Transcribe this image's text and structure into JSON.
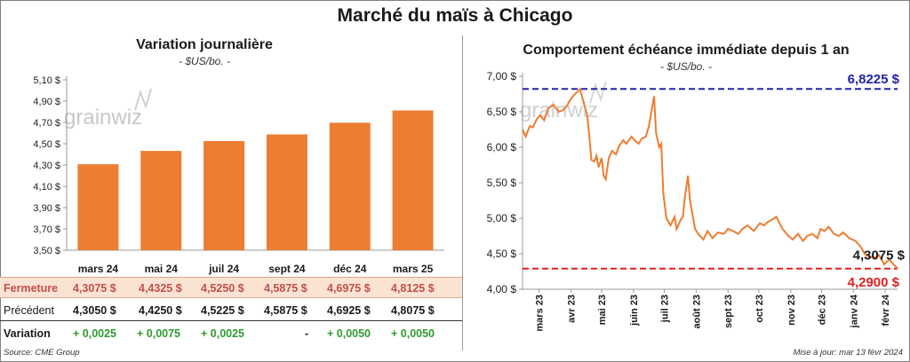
{
  "title": "Marché du maïs à Chicago",
  "watermark": "grainwiz",
  "left": {
    "title": "Variation journalière",
    "subtitle": "- $US/bo. -",
    "table": {
      "rows": [
        {
          "label": "Fermeture",
          "values": [
            "4,3075  $",
            "4,4325  $",
            "4,5250  $",
            "4,5875  $",
            "4,6975  $",
            "4,8125  $"
          ]
        },
        {
          "label": "Précédent",
          "values": [
            "4,3050  $",
            "4,4250  $",
            "4,5225  $",
            "4,5875  $",
            "4,6925  $",
            "4,8075  $"
          ]
        },
        {
          "label": "Variation",
          "values": [
            "+ 0,0025",
            "+ 0,0075",
            "+ 0,0025",
            "-",
            "+ 0,0050",
            "+ 0,0050"
          ]
        }
      ]
    }
  },
  "right": {
    "title": "Comportement  échéance immédiate depuis 1 an",
    "subtitle": "- $US/bo. -",
    "high_label": "6,8225 $",
    "low_label": "4,2900 $",
    "last_label": "4,3075 $"
  },
  "source": "Source: CME Group",
  "update": "Mise à jour: mar 13 févr 2024",
  "colors": {
    "bar": "#ed7d31",
    "line": "#ed7d31",
    "high": "#2222aa",
    "low": "#e02020",
    "variation": "#2e9b2e"
  },
  "chart_data": [
    {
      "type": "bar",
      "title": "Variation journalière",
      "categories": [
        "mars 24",
        "mai 24",
        "juil 24",
        "sept 24",
        "déc 24",
        "mars 25"
      ],
      "values": [
        4.3075,
        4.4325,
        4.525,
        4.5875,
        4.6975,
        4.8125
      ],
      "ylim": [
        3.5,
        5.1
      ],
      "yticks": [
        "3,50 $",
        "3,70 $",
        "3,90 $",
        "4,10 $",
        "4,30 $",
        "4,50 $",
        "4,70 $",
        "4,90 $",
        "5,10 $"
      ],
      "ytick_values": [
        3.5,
        3.7,
        3.9,
        4.1,
        4.3,
        4.5,
        4.7,
        4.9,
        5.1
      ],
      "grid": false
    },
    {
      "type": "line",
      "title": "Comportement  échéance immédiate depuis 1 an",
      "ylim": [
        4.0,
        7.0
      ],
      "yticks": [
        "4,00 $",
        "4,50 $",
        "5,00 $",
        "5,50 $",
        "6,00 $",
        "6,50 $",
        "7,00 $"
      ],
      "ytick_values": [
        4.0,
        4.5,
        5.0,
        5.5,
        6.0,
        6.5,
        7.0
      ],
      "xticks": [
        "mars 23",
        "avr 23",
        "mai 23",
        "juin 23",
        "juil 23",
        "août 23",
        "sept 23",
        "oct 23",
        "nov 23",
        "déc 23",
        "janv 24",
        "févr 24"
      ],
      "xlim": [
        "2023-02-13",
        "2024-02-13"
      ],
      "x": [
        "2023-02-13",
        "2023-02-16",
        "2023-02-20",
        "2023-02-23",
        "2023-02-27",
        "2023-03-02",
        "2023-03-06",
        "2023-03-10",
        "2023-03-15",
        "2023-03-20",
        "2023-03-24",
        "2023-03-28",
        "2023-04-01",
        "2023-04-05",
        "2023-04-10",
        "2023-04-14",
        "2023-04-17",
        "2023-04-19",
        "2023-04-21",
        "2023-04-24",
        "2023-04-26",
        "2023-04-28",
        "2023-05-01",
        "2023-05-03",
        "2023-05-05",
        "2023-05-08",
        "2023-05-11",
        "2023-05-15",
        "2023-05-18",
        "2023-05-22",
        "2023-05-25",
        "2023-05-30",
        "2023-06-02",
        "2023-06-06",
        "2023-06-09",
        "2023-06-13",
        "2023-06-16",
        "2023-06-19",
        "2023-06-21",
        "2023-06-23",
        "2023-06-26",
        "2023-06-28",
        "2023-06-30",
        "2023-07-03",
        "2023-07-07",
        "2023-07-11",
        "2023-07-13",
        "2023-07-17",
        "2023-07-19",
        "2023-07-21",
        "2023-07-24",
        "2023-07-26",
        "2023-07-28",
        "2023-07-31",
        "2023-08-03",
        "2023-08-08",
        "2023-08-12",
        "2023-08-17",
        "2023-08-22",
        "2023-08-28",
        "2023-09-01",
        "2023-09-06",
        "2023-09-11",
        "2023-09-15",
        "2023-09-20",
        "2023-09-26",
        "2023-10-02",
        "2023-10-06",
        "2023-10-10",
        "2023-10-14",
        "2023-10-18",
        "2023-10-24",
        "2023-10-30",
        "2023-11-03",
        "2023-11-08",
        "2023-11-13",
        "2023-11-17",
        "2023-11-22",
        "2023-11-27",
        "2023-11-30",
        "2023-12-04",
        "2023-12-08",
        "2023-12-13",
        "2023-12-18",
        "2023-12-22",
        "2023-12-28",
        "2024-01-03",
        "2024-01-08",
        "2024-01-12",
        "2024-01-17",
        "2024-01-22",
        "2024-01-26",
        "2024-01-31",
        "2024-02-05",
        "2024-02-09",
        "2024-02-12",
        "2024-02-13"
      ],
      "y": [
        6.25,
        6.15,
        6.3,
        6.28,
        6.4,
        6.45,
        6.38,
        6.55,
        6.6,
        6.5,
        6.52,
        6.58,
        6.68,
        6.75,
        6.82,
        6.6,
        6.45,
        6.15,
        5.82,
        5.8,
        5.88,
        5.72,
        5.85,
        5.6,
        5.55,
        5.85,
        5.95,
        5.9,
        6.02,
        6.1,
        6.05,
        6.15,
        6.1,
        6.05,
        6.12,
        6.15,
        6.3,
        6.55,
        6.72,
        6.2,
        6.0,
        6.05,
        5.35,
        5.0,
        4.9,
        5.02,
        4.85,
        4.98,
        5.02,
        5.3,
        5.6,
        5.25,
        5.08,
        4.85,
        4.78,
        4.7,
        4.82,
        4.72,
        4.8,
        4.78,
        4.85,
        4.82,
        4.78,
        4.85,
        4.9,
        4.82,
        4.93,
        4.9,
        4.95,
        4.98,
        5.02,
        4.85,
        4.75,
        4.7,
        4.78,
        4.68,
        4.75,
        4.78,
        4.72,
        4.85,
        4.82,
        4.88,
        4.78,
        4.75,
        4.8,
        4.72,
        4.68,
        4.6,
        4.5,
        4.45,
        4.45,
        4.48,
        4.35,
        4.42,
        4.35,
        4.31,
        4.29
      ],
      "hlines": [
        {
          "label": "6,8225 $",
          "value": 6.8225,
          "color": "#2222aa"
        },
        {
          "label": "4,2900 $",
          "value": 4.29,
          "color": "#e02020"
        }
      ],
      "annotations": [
        {
          "label": "4,3075 $",
          "value": 4.3075
        }
      ],
      "grid": false
    }
  ]
}
